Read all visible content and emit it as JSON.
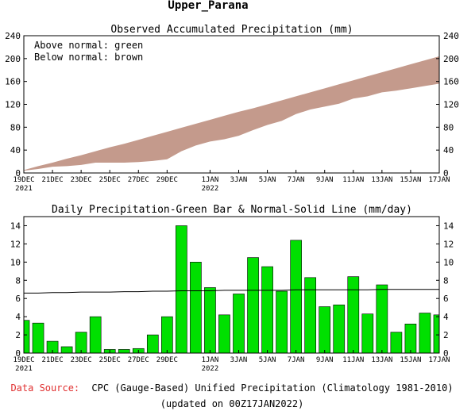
{
  "page": {
    "title": "Upper_Parana",
    "footer_source_label": "Data Source:",
    "footer_source_text": "CPC (Gauge-Based) Unified Precipitation (Climatology 1981-2010)",
    "footer_updated": "(updated on 00Z17JAN2022)"
  },
  "colors": {
    "source_label": "#e03030",
    "below_normal_band": "#c49a8c",
    "daily_bar": "#00e000",
    "normal_line": "#000000"
  },
  "x_axis": {
    "ticks": [
      {
        "day": 0,
        "label": "19DEC",
        "sub": "2021"
      },
      {
        "day": 2,
        "label": "21DEC",
        "sub": ""
      },
      {
        "day": 4,
        "label": "23DEC",
        "sub": ""
      },
      {
        "day": 6,
        "label": "25DEC",
        "sub": ""
      },
      {
        "day": 8,
        "label": "27DEC",
        "sub": ""
      },
      {
        "day": 10,
        "label": "29DEC",
        "sub": ""
      },
      {
        "day": 13,
        "label": "1JAN",
        "sub": "2022"
      },
      {
        "day": 15,
        "label": "3JAN",
        "sub": ""
      },
      {
        "day": 17,
        "label": "5JAN",
        "sub": ""
      },
      {
        "day": 19,
        "label": "7JAN",
        "sub": ""
      },
      {
        "day": 21,
        "label": "9JAN",
        "sub": ""
      },
      {
        "day": 23,
        "label": "11JAN",
        "sub": ""
      },
      {
        "day": 25,
        "label": "13JAN",
        "sub": ""
      },
      {
        "day": 27,
        "label": "15JAN",
        "sub": ""
      },
      {
        "day": 29,
        "label": "17JAN",
        "sub": ""
      }
    ]
  },
  "chart_data": [
    {
      "type": "area",
      "title": "Observed Accumulated Precipitation (mm)",
      "legend_lines": [
        "Above normal: green",
        "Below normal: brown"
      ],
      "legend_position": "top-left",
      "ylim": [
        0,
        240
      ],
      "yticks": [
        0,
        40,
        80,
        120,
        160,
        200,
        240
      ],
      "x_days": [
        0,
        1,
        2,
        3,
        4,
        5,
        6,
        7,
        8,
        9,
        10,
        11,
        12,
        13,
        14,
        15,
        16,
        17,
        18,
        19,
        20,
        21,
        22,
        23,
        24,
        25,
        26,
        27,
        28,
        29
      ],
      "series": [
        {
          "name": "Normal",
          "values": [
            5,
            12,
            18,
            25,
            31,
            38,
            45,
            51,
            58,
            65,
            72,
            79,
            86,
            93,
            100,
            107,
            113,
            120,
            127,
            134,
            141,
            148,
            155,
            162,
            169,
            176,
            183,
            190,
            197,
            204
          ]
        },
        {
          "name": "Observed",
          "values": [
            4,
            7,
            11,
            12,
            14,
            18,
            18,
            18,
            19,
            21,
            24,
            38,
            48,
            55,
            59,
            65,
            75,
            84,
            91,
            103,
            111,
            116,
            121,
            130,
            134,
            141,
            144,
            148,
            152,
            156
          ]
        }
      ]
    },
    {
      "type": "bar",
      "title": "Daily Precipitation-Green Bar & Normal-Solid Line (mm/day)",
      "ylim": [
        0,
        15
      ],
      "yticks": [
        0,
        2,
        4,
        6,
        8,
        10,
        12,
        14
      ],
      "x_days": [
        0,
        1,
        2,
        3,
        4,
        5,
        6,
        7,
        8,
        9,
        10,
        11,
        12,
        13,
        14,
        15,
        16,
        17,
        18,
        19,
        20,
        21,
        22,
        23,
        24,
        25,
        26,
        27,
        28,
        29
      ],
      "values": [
        3.6,
        3.3,
        1.3,
        0.7,
        2.3,
        4.0,
        0.4,
        0.4,
        0.5,
        2.0,
        4.0,
        14.0,
        10.0,
        7.2,
        4.2,
        6.5,
        10.5,
        9.5,
        6.8,
        12.4,
        8.3,
        5.1,
        5.3,
        8.4,
        4.3,
        7.5,
        2.3,
        3.2,
        4.4,
        4.2
      ],
      "normal": [
        6.6,
        6.6,
        6.65,
        6.65,
        6.7,
        6.7,
        6.7,
        6.75,
        6.75,
        6.8,
        6.8,
        6.85,
        6.85,
        6.85,
        6.9,
        6.9,
        6.9,
        6.9,
        6.9,
        6.95,
        6.95,
        6.95,
        6.95,
        6.95,
        6.95,
        7.0,
        7.0,
        7.0,
        7.0,
        7.0
      ]
    }
  ]
}
